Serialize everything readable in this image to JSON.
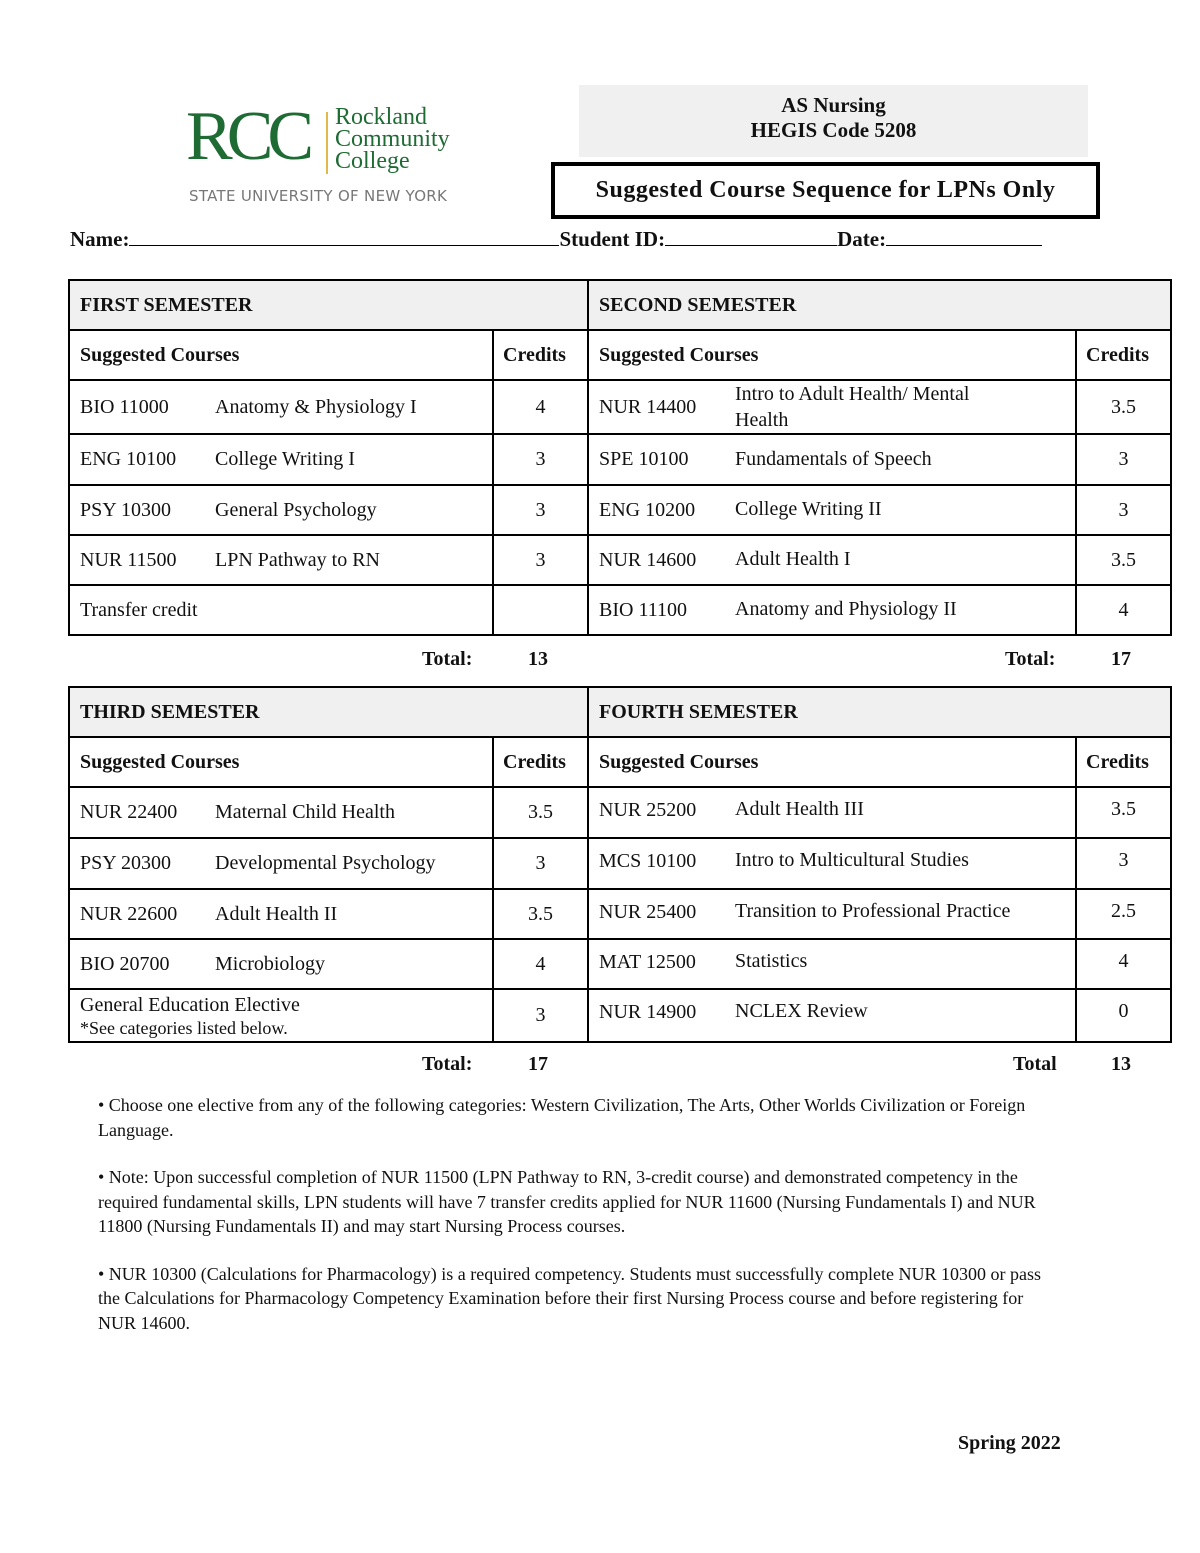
{
  "logo": {
    "initials": "RCC",
    "name_lines": [
      "Rockland",
      "Community",
      "College"
    ],
    "system": "STATE UNIVERSITY OF NEW YORK",
    "green": "#1f6b34"
  },
  "program": {
    "title": "AS Nursing",
    "hegis": "HEGIS Code 5208"
  },
  "sequence_title": "Suggested Course Sequence for LPNs Only",
  "form": {
    "name_label": "Name:",
    "student_id_label": "Student ID:",
    "date_label": "Date:"
  },
  "semesters": [
    {
      "title": "FIRST SEMESTER",
      "courses_header": "Suggested Courses",
      "credits_header": "Credits",
      "rows": [
        {
          "code": "BIO 11000",
          "name": "Anatomy & Physiology I",
          "credits": "4"
        },
        {
          "code": "ENG 10100",
          "name": "College Writing I",
          "credits": "3"
        },
        {
          "code": "PSY 10300",
          "name": "General Psychology",
          "credits": "3"
        },
        {
          "code": "NUR 11500",
          "name": "LPN Pathway to RN",
          "credits": "3"
        },
        {
          "code": "",
          "name": "Transfer credit",
          "credits": ""
        }
      ],
      "total_label": "Total:",
      "total": "13"
    },
    {
      "title": "SECOND SEMESTER",
      "courses_header": "Suggested Courses",
      "credits_header": "Credits",
      "rows": [
        {
          "code": "NUR 14400",
          "name": "Intro to Adult Health/ Mental Health",
          "credits": "3.5"
        },
        {
          "code": "SPE 10100",
          "name": "Fundamentals of Speech",
          "credits": "3"
        },
        {
          "code": "ENG 10200",
          "name": "College Writing II",
          "credits": "3"
        },
        {
          "code": "NUR 14600",
          "name": "Adult Health I",
          "credits": "3.5"
        },
        {
          "code": "BIO 11100",
          "name": "Anatomy and Physiology II",
          "credits": "4"
        }
      ],
      "total_label": "Total:",
      "total": "17"
    },
    {
      "title": "THIRD SEMESTER",
      "courses_header": "Suggested Courses",
      "credits_header": "Credits",
      "rows": [
        {
          "code": "NUR 22400",
          "name": "Maternal Child Health",
          "credits": "3.5"
        },
        {
          "code": "PSY 20300",
          "name": "Developmental Psychology",
          "credits": "3"
        },
        {
          "code": "NUR 22600",
          "name": "Adult Health II",
          "credits": "3.5"
        },
        {
          "code": "BIO 20700",
          "name": "Microbiology",
          "credits": "4"
        },
        {
          "code": "",
          "name": "General Education Elective",
          "note": "*See categories listed below.",
          "credits": "3"
        }
      ],
      "total_label": "Total:",
      "total": "17"
    },
    {
      "title": "FOURTH SEMESTER",
      "courses_header": "Suggested Courses",
      "credits_header": "Credits",
      "rows": [
        {
          "code": "NUR 25200",
          "name": "Adult Health III",
          "credits": "3.5"
        },
        {
          "code": "MCS 10100",
          "name": "Intro to Multicultural Studies",
          "credits": "3"
        },
        {
          "code": "NUR 25400",
          "name": "Transition to Professional Practice",
          "credits": "2.5"
        },
        {
          "code": "MAT 12500",
          "name": "Statistics",
          "credits": "4"
        },
        {
          "code": "NUR 14900",
          "name": "NCLEX Review",
          "credits": "0"
        }
      ],
      "total_label": "Total",
      "total": "13"
    }
  ],
  "notes": [
    "• Choose one elective from any of the following categories: Western Civilization, The Arts, Other Worlds Civilization or Foreign Language.",
    "• Note: Upon successful completion of NUR 11500 (LPN Pathway to RN, 3-credit course) and demonstrated competency in the required fundamental skills, LPN students will have 7 transfer credits applied for NUR 11600 (Nursing Fundamentals I) and NUR 11800 (Nursing Fundamentals II) and may start Nursing Process courses.",
    "• NUR 10300 (Calculations for Pharmacology) is a required competency. Students must successfully complete NUR 10300 or pass the Calculations for Pharmacology Competency Examination before their first Nursing Process course and before registering for NUR 14600."
  ],
  "footer": "Spring 2022"
}
